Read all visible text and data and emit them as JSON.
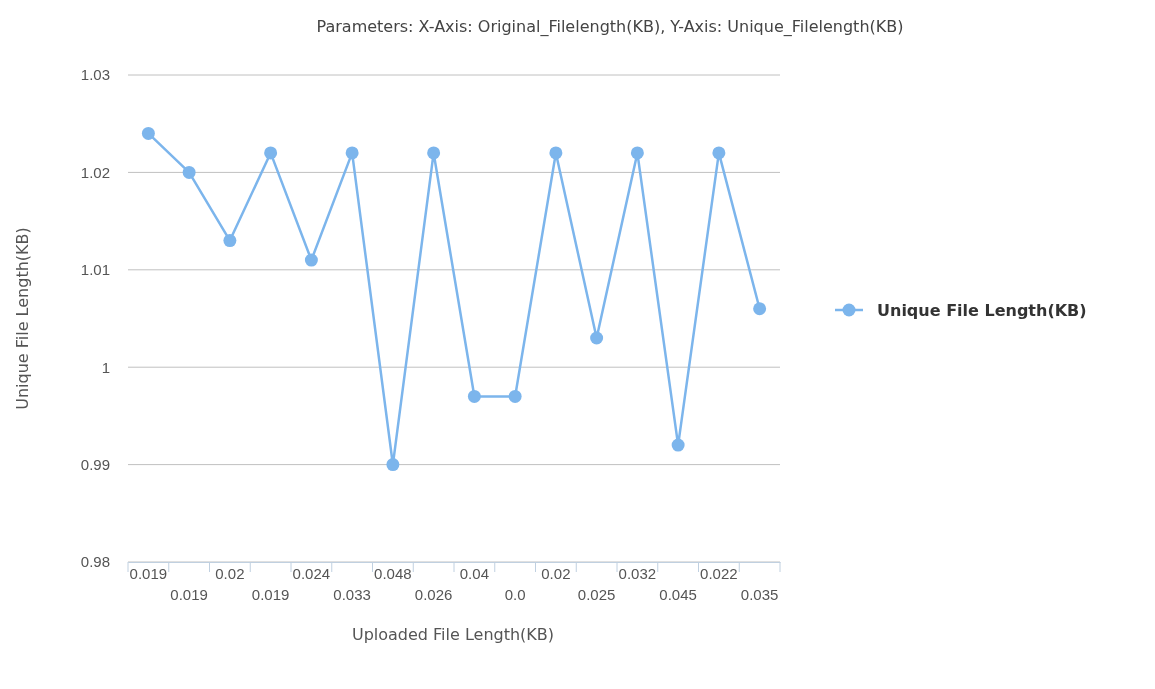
{
  "chart_data": {
    "type": "line",
    "title": "Parameters: X-Axis: Original_Filelength(KB), Y-Axis: Unique_Filelength(KB)",
    "xlabel": "Uploaded File Length(KB)",
    "ylabel": "Unique File Length(KB)",
    "categories": [
      "0.019",
      "0.019",
      "0.02",
      "0.019",
      "0.024",
      "0.033",
      "0.048",
      "0.026",
      "0.04",
      "0.0",
      "0.02",
      "0.025",
      "0.032",
      "0.045",
      "0.022",
      "0.035"
    ],
    "series": [
      {
        "name": "Unique File Length(KB)",
        "color": "#7cb5ec",
        "values": [
          1.024,
          1.02,
          1.013,
          1.022,
          1.011,
          1.022,
          0.99,
          1.022,
          0.997,
          0.997,
          1.022,
          1.003,
          1.022,
          0.992,
          1.022,
          1.006
        ]
      }
    ],
    "ylim": [
      0.98,
      1.03
    ],
    "yticks": [
      0.98,
      0.99,
      1,
      1.01,
      1.02,
      1.03
    ],
    "grid": "y",
    "legend": "right",
    "marker": "circle",
    "line_style": "solid"
  }
}
